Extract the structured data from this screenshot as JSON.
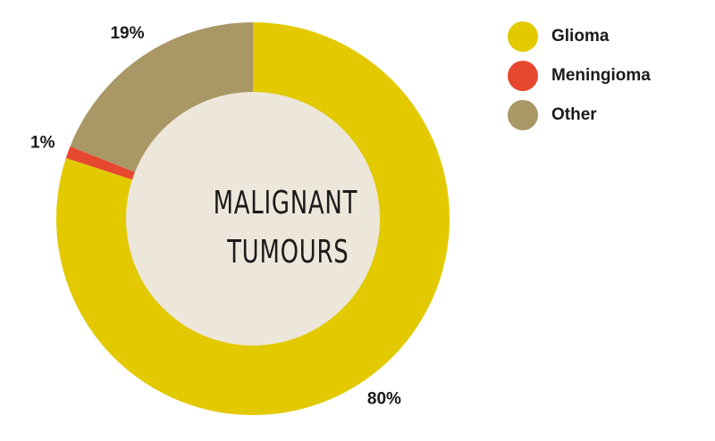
{
  "chart_data": {
    "type": "donut",
    "center_label": [
      "MALIGNANT",
      "TUMOURS"
    ],
    "categories": [
      "Glioma",
      "Meningioma",
      "Other"
    ],
    "values": [
      80,
      1,
      19
    ],
    "value_labels": [
      "80%",
      "1%",
      "19%"
    ],
    "colors": [
      "#e2c900",
      "#e6482f",
      "#a99766"
    ],
    "legend": "top-right"
  }
}
